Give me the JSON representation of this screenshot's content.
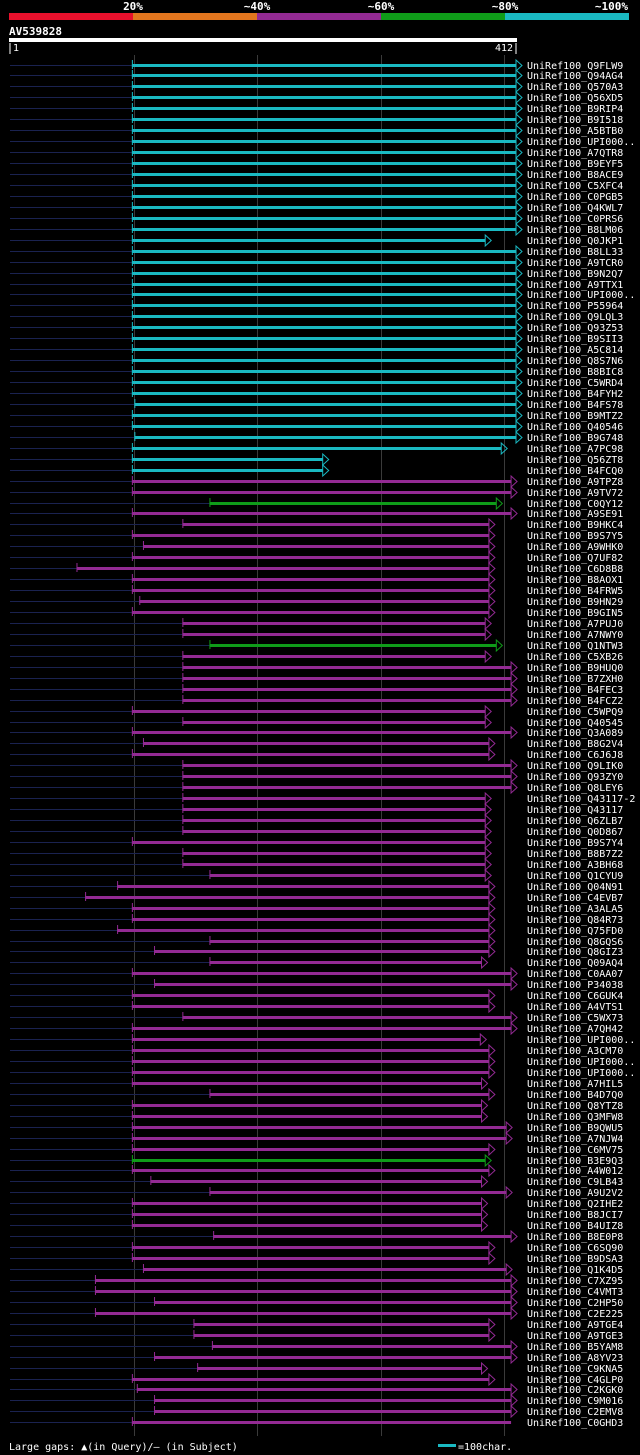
{
  "chart_data": {
    "type": "alignment-overview",
    "query": {
      "name": "AV539828",
      "start": 1,
      "end": 412
    },
    "identity_legend": [
      {
        "label": "20%",
        "color": "#e8102c"
      },
      {
        "label": "~40%",
        "color": "#e2761e"
      },
      {
        "label": "~60%",
        "color": "#932a93"
      },
      {
        "label": "~80%",
        "color": "#0f9c19"
      },
      {
        "label": "~100%",
        "color": "#1ab9c2"
      }
    ],
    "footer": {
      "gaps_text": "Large gaps: ▲(in Query)/– (in Subject)",
      "scale_text": "=100char.",
      "scale_color": "#1ab9c2"
    },
    "colors": {
      "cyan": "#1ab9c2",
      "magenta": "#932a93",
      "green": "#0f9c19",
      "dim": "#1a2250",
      "grid": "#3a3a3a"
    },
    "hits": [
      {
        "name": "UniRef100_Q9FLW9",
        "c": "cyan",
        "qs": 100,
        "qe": 412,
        "ss": 1,
        "tri": 1
      },
      {
        "name": "UniRef100_Q94AG4",
        "c": "cyan",
        "qs": 100,
        "qe": 412,
        "ss": 1,
        "tri": 1
      },
      {
        "name": "UniRef100_Q570A3",
        "c": "cyan",
        "qs": 100,
        "qe": 412,
        "ss": 1,
        "tri": 1
      },
      {
        "name": "UniRef100_Q56XD5",
        "c": "cyan",
        "qs": 100,
        "qe": 412,
        "ss": 1,
        "tri": 1
      },
      {
        "name": "UniRef100_B9RIP4",
        "c": "cyan",
        "qs": 100,
        "qe": 412,
        "ss": 1,
        "tri": 1
      },
      {
        "name": "UniRef100_B9I518",
        "c": "cyan",
        "qs": 100,
        "qe": 412,
        "ss": 1,
        "tri": 1
      },
      {
        "name": "UniRef100_A5BTB0",
        "c": "cyan",
        "qs": 100,
        "qe": 412,
        "ss": 1,
        "tri": 1
      },
      {
        "name": "UniRef100_UPI000..",
        "c": "cyan",
        "qs": 100,
        "qe": 412,
        "ss": 1,
        "tri": 1
      },
      {
        "name": "UniRef100_A7QTR8",
        "c": "cyan",
        "qs": 100,
        "qe": 412,
        "ss": 1,
        "tri": 1
      },
      {
        "name": "UniRef100_B9EYF5",
        "c": "cyan",
        "qs": 100,
        "qe": 412,
        "ss": 1,
        "tri": 1
      },
      {
        "name": "UniRef100_B8ACE9",
        "c": "cyan",
        "qs": 100,
        "qe": 412,
        "ss": 1,
        "tri": 1
      },
      {
        "name": "UniRef100_C5XFC4",
        "c": "cyan",
        "qs": 100,
        "qe": 412,
        "ss": 1,
        "tri": 1
      },
      {
        "name": "UniRef100_C0PGB5",
        "c": "cyan",
        "qs": 100,
        "qe": 412,
        "ss": 1,
        "tri": 1
      },
      {
        "name": "UniRef100_Q4KWL7",
        "c": "cyan",
        "qs": 100,
        "qe": 412,
        "ss": 1,
        "tri": 1
      },
      {
        "name": "UniRef100_C0PRS6",
        "c": "cyan",
        "qs": 100,
        "qe": 412,
        "ss": 1,
        "tri": 1
      },
      {
        "name": "UniRef100_B8LM06",
        "c": "cyan",
        "qs": 100,
        "qe": 412,
        "ss": 1,
        "tri": 1
      },
      {
        "name": "UniRef100_Q0JKP1",
        "c": "cyan",
        "qs": 100,
        "qe": 387,
        "ss": 1,
        "tri": 1
      },
      {
        "name": "UniRef100_B8LL33",
        "c": "cyan",
        "qs": 100,
        "qe": 412,
        "ss": 1,
        "tri": 1
      },
      {
        "name": "UniRef100_A9TCR0",
        "c": "cyan",
        "qs": 100,
        "qe": 412,
        "ss": 1,
        "tri": 1
      },
      {
        "name": "UniRef100_B9N2Q7",
        "c": "cyan",
        "qs": 100,
        "qe": 412,
        "ss": 1,
        "tri": 1
      },
      {
        "name": "UniRef100_A9TTX1",
        "c": "cyan",
        "qs": 100,
        "qe": 412,
        "ss": 1,
        "tri": 1
      },
      {
        "name": "UniRef100_UPI000..",
        "c": "cyan",
        "qs": 100,
        "qe": 412,
        "ss": 1,
        "tri": 1
      },
      {
        "name": "UniRef100_P55964",
        "c": "cyan",
        "qs": 100,
        "qe": 412,
        "ss": 1,
        "tri": 1
      },
      {
        "name": "UniRef100_Q9LQL3",
        "c": "cyan",
        "qs": 100,
        "qe": 412,
        "ss": 1,
        "tri": 1
      },
      {
        "name": "UniRef100_Q93Z53",
        "c": "cyan",
        "qs": 100,
        "qe": 412,
        "ss": 1,
        "tri": 1
      },
      {
        "name": "UniRef100_B9SII3",
        "c": "cyan",
        "qs": 100,
        "qe": 412,
        "ss": 1,
        "tri": 1
      },
      {
        "name": "UniRef100_A5C814",
        "c": "cyan",
        "qs": 100,
        "qe": 412,
        "ss": 1,
        "tri": 1
      },
      {
        "name": "UniRef100_Q8S7N6",
        "c": "cyan",
        "qs": 100,
        "qe": 412,
        "ss": 1,
        "tri": 1
      },
      {
        "name": "UniRef100_B8BIC8",
        "c": "cyan",
        "qs": 100,
        "qe": 412,
        "ss": 1,
        "tri": 1
      },
      {
        "name": "UniRef100_C5WRD4",
        "c": "cyan",
        "qs": 100,
        "qe": 412,
        "ss": 1,
        "tri": 1
      },
      {
        "name": "UniRef100_B4FYH2",
        "c": "cyan",
        "qs": 100,
        "qe": 412,
        "ss": 1,
        "tri": 1
      },
      {
        "name": "UniRef100_B4FS78",
        "c": "cyan",
        "qs": 102,
        "qe": 412,
        "ss": 1,
        "tri": 1
      },
      {
        "name": "UniRef100_B9MTZ2",
        "c": "cyan",
        "qs": 100,
        "qe": 412,
        "ss": 1,
        "tri": 1
      },
      {
        "name": "UniRef100_Q40546",
        "c": "cyan",
        "qs": 100,
        "qe": 412,
        "ss": 1,
        "tri": 1
      },
      {
        "name": "UniRef100_B9G748",
        "c": "cyan",
        "qs": 102,
        "qe": 412,
        "ss": 1,
        "tri": 1
      },
      {
        "name": "UniRef100_A7PC98",
        "c": "cyan",
        "qs": 100,
        "qe": 400,
        "ss": 1,
        "tri": 1
      },
      {
        "name": "UniRef100_Q56ZT8",
        "c": "cyan",
        "qs": 100,
        "qe": 255,
        "ss": 1,
        "tri": 1
      },
      {
        "name": "UniRef100_B4FCQ0",
        "c": "cyan",
        "qs": 100,
        "qe": 255,
        "ss": 1,
        "tri": 1
      },
      {
        "name": "UniRef100_A9TPZ8",
        "c": "magenta",
        "qs": 100,
        "qe": 408,
        "ss": 1,
        "tri": 1
      },
      {
        "name": "UniRef100_A9TV72",
        "c": "magenta",
        "qs": 100,
        "qe": 408,
        "ss": 1,
        "tri": 1
      },
      {
        "name": "UniRef100_C0QY12",
        "c": "green",
        "qs": 163,
        "qe": 396,
        "ss": 1,
        "tri": 1
      },
      {
        "name": "UniRef100_A9SE91",
        "c": "magenta",
        "qs": 100,
        "qe": 408,
        "ss": 1,
        "tri": 1
      },
      {
        "name": "UniRef100_B9HKC4",
        "c": "magenta",
        "qs": 141,
        "qe": 390,
        "ss": 1,
        "tri": 1
      },
      {
        "name": "UniRef100_B9S7Y5",
        "c": "magenta",
        "qs": 100,
        "qe": 390,
        "ss": 1,
        "tri": 1
      },
      {
        "name": "UniRef100_A9WHK0",
        "c": "magenta",
        "qs": 109,
        "qe": 390,
        "ss": 1,
        "tri": 1
      },
      {
        "name": "UniRef100_Q7UF82",
        "c": "magenta",
        "qs": 100,
        "qe": 390,
        "ss": 1,
        "tri": 1
      },
      {
        "name": "UniRef100_C6D8B8",
        "c": "magenta",
        "qs": 55,
        "qe": 390,
        "ss": 1,
        "tri": 1
      },
      {
        "name": "UniRef100_B8AOX1",
        "c": "magenta",
        "qs": 100,
        "qe": 390,
        "ss": 1,
        "tri": 1
      },
      {
        "name": "UniRef100_B4FRW5",
        "c": "magenta",
        "qs": 100,
        "qe": 390,
        "ss": 1,
        "tri": 1
      },
      {
        "name": "UniRef100_B9HN29",
        "c": "magenta",
        "qs": 106,
        "qe": 390,
        "ss": 1,
        "tri": 1
      },
      {
        "name": "UniRef100_B9GIN5",
        "c": "magenta",
        "qs": 100,
        "qe": 390,
        "ss": 1,
        "tri": 1
      },
      {
        "name": "UniRef100_A7PUJ0",
        "c": "magenta",
        "qs": 141,
        "qe": 387,
        "ss": 1,
        "tri": 1
      },
      {
        "name": "UniRef100_A7NWY0",
        "c": "magenta",
        "qs": 141,
        "qe": 387,
        "ss": 1,
        "tri": 1
      },
      {
        "name": "UniRef100_Q1NTW3",
        "c": "green",
        "qs": 163,
        "qe": 396,
        "ss": 1,
        "tri": 1
      },
      {
        "name": "UniRef100_C5XB26",
        "c": "magenta",
        "qs": 141,
        "qe": 387,
        "ss": 1,
        "tri": 1
      },
      {
        "name": "UniRef100_B9HUQ0",
        "c": "magenta",
        "qs": 141,
        "qe": 408,
        "ss": 1,
        "tri": 1
      },
      {
        "name": "UniRef100_B7ZXH0",
        "c": "magenta",
        "qs": 141,
        "qe": 408,
        "ss": 1,
        "tri": 1
      },
      {
        "name": "UniRef100_B4FEC3",
        "c": "magenta",
        "qs": 141,
        "qe": 408,
        "ss": 1,
        "tri": 1
      },
      {
        "name": "UniRef100_B4FCZ2",
        "c": "magenta",
        "qs": 141,
        "qe": 408,
        "ss": 1,
        "tri": 1
      },
      {
        "name": "UniRef100_C5WPQ9",
        "c": "magenta",
        "qs": 100,
        "qe": 387,
        "ss": 1,
        "tri": 1
      },
      {
        "name": "UniRef100_Q40545",
        "c": "magenta",
        "qs": 141,
        "qe": 387,
        "ss": 1,
        "tri": 1
      },
      {
        "name": "UniRef100_Q3A089",
        "c": "magenta",
        "qs": 100,
        "qe": 408,
        "ss": 1,
        "tri": 1
      },
      {
        "name": "UniRef100_B8G2V4",
        "c": "magenta",
        "qs": 109,
        "qe": 390,
        "ss": 1,
        "tri": 1
      },
      {
        "name": "UniRef100_C6J6J8",
        "c": "magenta",
        "qs": 100,
        "qe": 390,
        "ss": 1,
        "tri": 1
      },
      {
        "name": "UniRef100_Q9LIK0",
        "c": "magenta",
        "qs": 141,
        "qe": 408,
        "ss": 1,
        "tri": 1
      },
      {
        "name": "UniRef100_Q93ZY0",
        "c": "magenta",
        "qs": 141,
        "qe": 408,
        "ss": 1,
        "tri": 1
      },
      {
        "name": "UniRef100_Q8LEY6",
        "c": "magenta",
        "qs": 141,
        "qe": 408,
        "ss": 1,
        "tri": 1
      },
      {
        "name": "UniRef100_Q43117-2",
        "c": "magenta",
        "qs": 141,
        "qe": 387,
        "ss": 1,
        "tri": 1
      },
      {
        "name": "UniRef100_Q43117",
        "c": "magenta",
        "qs": 141,
        "qe": 387,
        "ss": 1,
        "tri": 1
      },
      {
        "name": "UniRef100_Q6ZLB7",
        "c": "magenta",
        "qs": 141,
        "qe": 387,
        "ss": 1,
        "tri": 1
      },
      {
        "name": "UniRef100_Q0D867",
        "c": "magenta",
        "qs": 141,
        "qe": 387,
        "ss": 1,
        "tri": 1
      },
      {
        "name": "UniRef100_B9S7Y4",
        "c": "magenta",
        "qs": 100,
        "qe": 387,
        "ss": 1,
        "tri": 1
      },
      {
        "name": "UniRef100_B8B7Z2",
        "c": "magenta",
        "qs": 141,
        "qe": 387,
        "ss": 1,
        "tri": 1
      },
      {
        "name": "UniRef100_A3BH68",
        "c": "magenta",
        "qs": 141,
        "qe": 387,
        "ss": 1,
        "tri": 1
      },
      {
        "name": "UniRef100_Q1CYU9",
        "c": "magenta",
        "qs": 163,
        "qe": 387,
        "ss": 1,
        "tri": 1
      },
      {
        "name": "UniRef100_Q04N91",
        "c": "magenta",
        "qs": 88,
        "qe": 390,
        "ss": 1,
        "tri": 1
      },
      {
        "name": "UniRef100_C4EVB7",
        "c": "magenta",
        "qs": 62,
        "qe": 390,
        "ss": 1,
        "tri": 1
      },
      {
        "name": "UniRef100_A3ALA5",
        "c": "magenta",
        "qs": 100,
        "qe": 390,
        "ss": 1,
        "tri": 1
      },
      {
        "name": "UniRef100_Q84R73",
        "c": "magenta",
        "qs": 100,
        "qe": 390,
        "ss": 1,
        "tri": 1
      },
      {
        "name": "UniRef100_Q75FD0",
        "c": "magenta",
        "qs": 88,
        "qe": 390,
        "ss": 1,
        "tri": 1
      },
      {
        "name": "UniRef100_Q8GQS6",
        "c": "magenta",
        "qs": 163,
        "qe": 390,
        "ss": 1,
        "tri": 1
      },
      {
        "name": "UniRef100_Q8GIZ3",
        "c": "magenta",
        "qs": 118,
        "qe": 390,
        "ss": 1,
        "tri": 1
      },
      {
        "name": "UniRef100_Q09AQ4",
        "c": "magenta",
        "qs": 163,
        "qe": 384,
        "ss": 1,
        "tri": 1
      },
      {
        "name": "UniRef100_C0AA07",
        "c": "magenta",
        "qs": 100,
        "qe": 408,
        "ss": 1,
        "tri": 1
      },
      {
        "name": "UniRef100_P34038",
        "c": "magenta",
        "qs": 118,
        "qe": 408,
        "ss": 1,
        "tri": 1
      },
      {
        "name": "UniRef100_C6GUK4",
        "c": "magenta",
        "qs": 100,
        "qe": 390,
        "ss": 1,
        "tri": 1
      },
      {
        "name": "UniRef100_A4VTS1",
        "c": "magenta",
        "qs": 100,
        "qe": 390,
        "ss": 1,
        "tri": 1
      },
      {
        "name": "UniRef100_C5WX73",
        "c": "magenta",
        "qs": 141,
        "qe": 408,
        "ss": 1,
        "tri": 1
      },
      {
        "name": "UniRef100_A7QH42",
        "c": "magenta",
        "qs": 100,
        "qe": 408,
        "ss": 1,
        "tri": 1
      },
      {
        "name": "UniRef100_UPI000..",
        "c": "magenta",
        "qs": 100,
        "qe": 383,
        "ss": 1,
        "tri": 1
      },
      {
        "name": "UniRef100_A3CM70",
        "c": "magenta",
        "qs": 100,
        "qe": 390,
        "ss": 1,
        "tri": 1
      },
      {
        "name": "UniRef100_UPI000..",
        "c": "magenta",
        "qs": 100,
        "qe": 390,
        "ss": 1,
        "tri": 1
      },
      {
        "name": "UniRef100_UPI000..",
        "c": "magenta",
        "qs": 100,
        "qe": 390,
        "ss": 1,
        "tri": 1
      },
      {
        "name": "UniRef100_A7HIL5",
        "c": "magenta",
        "qs": 100,
        "qe": 384,
        "ss": 1,
        "tri": 1
      },
      {
        "name": "UniRef100_B4D7Q0",
        "c": "magenta",
        "qs": 163,
        "qe": 390,
        "ss": 1,
        "tri": 1
      },
      {
        "name": "UniRef100_Q8YTZ8",
        "c": "magenta",
        "qs": 100,
        "qe": 384,
        "ss": 1,
        "tri": 1
      },
      {
        "name": "UniRef100_Q3MFW8",
        "c": "magenta",
        "qs": 100,
        "qe": 384,
        "ss": 1,
        "tri": 1
      },
      {
        "name": "UniRef100_B9QWU5",
        "c": "magenta",
        "qs": 100,
        "qe": 404,
        "ss": 1,
        "tri": 1
      },
      {
        "name": "UniRef100_A7NJW4",
        "c": "magenta",
        "qs": 100,
        "qe": 404,
        "ss": 1,
        "tri": 1
      },
      {
        "name": "UniRef100_C6MV75",
        "c": "magenta",
        "qs": 100,
        "qe": 390,
        "ss": 1,
        "tri": 1
      },
      {
        "name": "UniRef100_B3E9Q3",
        "c": "green",
        "qs": 100,
        "qe": 387,
        "ss": 1,
        "tri": 1
      },
      {
        "name": "UniRef100_A4W012",
        "c": "magenta",
        "qs": 100,
        "qe": 390,
        "ss": 1,
        "tri": 1
      },
      {
        "name": "UniRef100_C9LB43",
        "c": "magenta",
        "qs": 115,
        "qe": 384,
        "ss": 1,
        "tri": 1
      },
      {
        "name": "UniRef100_A9U2V2",
        "c": "magenta",
        "qs": 163,
        "qe": 404,
        "ss": 1,
        "tri": 1
      },
      {
        "name": "UniRef100_Q2IHE2",
        "c": "magenta",
        "qs": 100,
        "qe": 384,
        "ss": 1,
        "tri": 1
      },
      {
        "name": "UniRef100_B8JCI7",
        "c": "magenta",
        "qs": 100,
        "qe": 384,
        "ss": 1,
        "tri": 1
      },
      {
        "name": "UniRef100_B4UIZ8",
        "c": "magenta",
        "qs": 100,
        "qe": 384,
        "ss": 1,
        "tri": 1
      },
      {
        "name": "UniRef100_B8E0P8",
        "c": "magenta",
        "qs": 166,
        "qe": 408,
        "ss": 1,
        "tri": 1
      },
      {
        "name": "UniRef100_C6SQ90",
        "c": "magenta",
        "qs": 100,
        "qe": 390,
        "ss": 1,
        "tri": 1
      },
      {
        "name": "UniRef100_B9DSA3",
        "c": "magenta",
        "qs": 100,
        "qe": 390,
        "ss": 1,
        "tri": 1
      },
      {
        "name": "UniRef100_Q1K4D5",
        "c": "magenta",
        "qs": 109,
        "qe": 404,
        "ss": 1,
        "tri": 1
      },
      {
        "name": "UniRef100_C7XZ95",
        "c": "magenta",
        "qs": 70,
        "qe": 408,
        "ss": 1,
        "tri": 1
      },
      {
        "name": "UniRef100_C4VMT3",
        "c": "magenta",
        "qs": 70,
        "qe": 408,
        "ss": 1,
        "tri": 1
      },
      {
        "name": "UniRef100_C2HP50",
        "c": "magenta",
        "qs": 118,
        "qe": 408,
        "ss": 1,
        "tri": 1
      },
      {
        "name": "UniRef100_C2E225",
        "c": "magenta",
        "qs": 70,
        "qe": 408,
        "ss": 1,
        "tri": 1
      },
      {
        "name": "UniRef100_A9TGE4",
        "c": "magenta",
        "qs": 150,
        "qe": 390,
        "ss": 1,
        "tri": 1
      },
      {
        "name": "UniRef100_A9TGE3",
        "c": "magenta",
        "qs": 150,
        "qe": 390,
        "ss": 1,
        "tri": 1
      },
      {
        "name": "UniRef100_B5YAM8",
        "c": "magenta",
        "qs": 165,
        "qe": 408,
        "ss": 1,
        "tri": 1
      },
      {
        "name": "UniRef100_A8YV23",
        "c": "magenta",
        "qs": 118,
        "qe": 408,
        "ss": 1,
        "tri": 1
      },
      {
        "name": "UniRef100_C9KNA5",
        "c": "magenta",
        "qs": 153,
        "qe": 384,
        "ss": 1,
        "tri": 1
      },
      {
        "name": "UniRef100_C4GLP0",
        "c": "magenta",
        "qs": 100,
        "qe": 390,
        "ss": 1,
        "tri": 1
      },
      {
        "name": "UniRef100_C2KGK0",
        "c": "magenta",
        "qs": 104,
        "qe": 408,
        "ss": 1,
        "tri": 1
      },
      {
        "name": "UniRef100_C9M016",
        "c": "magenta",
        "qs": 118,
        "qe": 408,
        "ss": 1,
        "tri": 1
      },
      {
        "name": "UniRef100_C2EMV8",
        "c": "magenta",
        "qs": 118,
        "qe": 408,
        "ss": 1,
        "tri": 1
      },
      {
        "name": "UniRef100_C0GHD3",
        "c": "magenta",
        "qs": 100,
        "qe": 408,
        "ss": 1,
        "tri": 0
      }
    ]
  }
}
